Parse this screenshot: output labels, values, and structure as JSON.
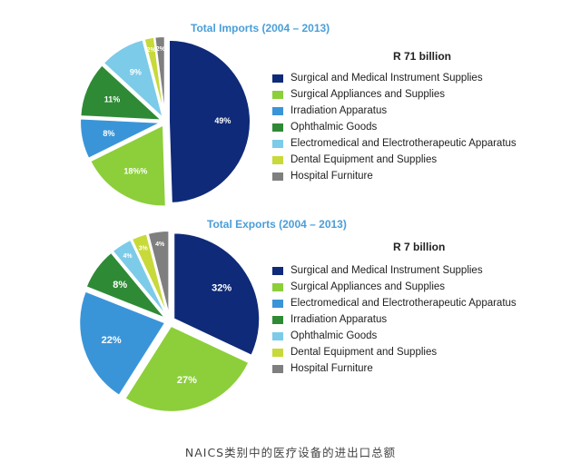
{
  "chart_data": [
    {
      "type": "pie",
      "title": "Total Imports (2004 – 2013)",
      "total": "R 71 billion",
      "slices": [
        {
          "name": "Surgical and Medical Instrument Supplies",
          "value": 49,
          "label": "49%",
          "color": "#0f2a78"
        },
        {
          "name": "Surgical Appliances and Supplies",
          "value": 18,
          "label": "18%%",
          "color": "#8ccf3a"
        },
        {
          "name": "Irradiation Apparatus",
          "value": 8,
          "label": "8%",
          "color": "#3a95d8"
        },
        {
          "name": "Ophthalmic Goods",
          "value": 11,
          "label": "11%",
          "color": "#2f8a36"
        },
        {
          "name": "Electromedical and Electrotherapeutic Apparatus",
          "value": 9,
          "label": "9%",
          "color": "#7ccbe8"
        },
        {
          "name": "Dental Equipment and Supplies",
          "value": 2,
          "label": "2%",
          "color": "#c8d93a"
        },
        {
          "name": "Hospital Furniture",
          "value": 2,
          "label": "2%",
          "color": "#7f7f7f"
        }
      ]
    },
    {
      "type": "pie",
      "title": "Total Exports (2004 – 2013)",
      "total": "R 7 billion",
      "slices": [
        {
          "name": "Surgical and Medical Instrument Supplies",
          "value": 32,
          "label": "32%",
          "color": "#0f2a78"
        },
        {
          "name": "Surgical Appliances and Supplies",
          "value": 27,
          "label": "27%",
          "color": "#8ccf3a"
        },
        {
          "name": "Electromedical and Electrotherapeutic Apparatus",
          "value": 22,
          "label": "22%",
          "color": "#3a95d8"
        },
        {
          "name": "Irradiation Apparatus",
          "value": 8,
          "label": "8%",
          "color": "#2f8a36"
        },
        {
          "name": "Ophthalmic Goods",
          "value": 4,
          "label": "4%",
          "color": "#7ccbe8"
        },
        {
          "name": "Dental Equipment and Supplies",
          "value": 3,
          "label": "3%",
          "color": "#c8d93a"
        },
        {
          "name": "Hospital Furniture",
          "value": 4,
          "label": "4%",
          "color": "#7f7f7f"
        }
      ]
    }
  ],
  "caption": "NAICS类别中的医疗设备的进出口总额"
}
